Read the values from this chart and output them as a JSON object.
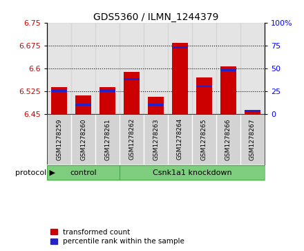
{
  "title": "GDS5360 / ILMN_1244379",
  "samples": [
    "GSM1278259",
    "GSM1278260",
    "GSM1278261",
    "GSM1278262",
    "GSM1278263",
    "GSM1278264",
    "GSM1278265",
    "GSM1278266",
    "GSM1278267"
  ],
  "red_values": [
    6.537,
    6.51,
    6.537,
    6.588,
    6.505,
    6.683,
    6.57,
    6.607,
    6.462
  ],
  "blue_values_pct": [
    25,
    10,
    25,
    38,
    10,
    73,
    30,
    48,
    3
  ],
  "ylim": [
    6.45,
    6.75
  ],
  "yticks": [
    6.45,
    6.525,
    6.6,
    6.675,
    6.75
  ],
  "ytick_labels": [
    "6.45",
    "6.525",
    "6.6",
    "6.675",
    "6.75"
  ],
  "y2lim": [
    0,
    100
  ],
  "y2ticks": [
    0,
    25,
    50,
    75,
    100
  ],
  "y2tick_labels": [
    "0",
    "25",
    "50",
    "75",
    "100%"
  ],
  "bar_width": 0.65,
  "red_color": "#cc0000",
  "blue_color": "#2222cc",
  "grid_color": "#000000",
  "control_samples": [
    0,
    1,
    2
  ],
  "knockdown_samples": [
    3,
    4,
    5,
    6,
    7,
    8
  ],
  "control_label": "control",
  "knockdown_label": "Csnk1a1 knockdown",
  "protocol_label": "protocol",
  "legend1": "transformed count",
  "legend2": "percentile rank within the sample",
  "bar_baseline": 6.45,
  "sample_box_color": "#d3d3d3",
  "plot_bg": "#ffffff",
  "green_color": "#7fce7f",
  "green_border": "#44aa44"
}
